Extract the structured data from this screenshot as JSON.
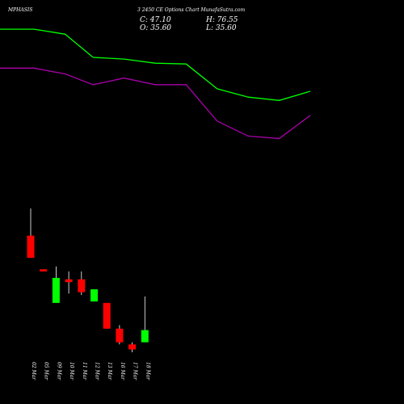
{
  "header": {
    "symbol": "MPHASIS",
    "subtitle": "3 2450  CE Options  Chart MunafaSutra.com",
    "close_label": "C: 47.10",
    "open_label": "O: 35.60",
    "high_label": "H: 76.55",
    "low_label": "L: 35.60"
  },
  "chart_data": {
    "type": "candlestick",
    "x": [
      "02 Mar",
      "05 Mar",
      "09 Mar",
      "10 Mar",
      "11 Mar",
      "12 Mar",
      "13 Mar",
      "16 Mar",
      "17 Mar",
      "18 Mar"
    ],
    "candles": [
      {
        "open": 163,
        "close": 132,
        "high": 201,
        "low": 132
      },
      {
        "open": 116,
        "close": 113,
        "high": 116,
        "low": 113
      },
      {
        "open": 69,
        "close": 104,
        "high": 120,
        "low": 69
      },
      {
        "open": 102,
        "close": 98,
        "high": 113,
        "low": 82
      },
      {
        "open": 102,
        "close": 84,
        "high": 113,
        "low": 80
      },
      {
        "open": 71,
        "close": 88,
        "high": 88,
        "low": 71
      },
      {
        "open": 69,
        "close": 33,
        "high": 69,
        "low": 33
      },
      {
        "open": 33,
        "close": 14,
        "high": 38,
        "low": 11
      },
      {
        "open": 11,
        "close": 4,
        "high": 14,
        "low": 0
      },
      {
        "open": 14,
        "close": 31,
        "high": 78,
        "low": 14
      }
    ],
    "price_range": [
      0,
      201
    ],
    "upper_band": {
      "color": "#00ff00",
      "x": [
        0,
        1.1,
        2.1,
        3.0,
        4.0,
        5.0,
        6.0,
        7.0,
        8.0,
        9.0,
        10.0
      ],
      "values": [
        394,
        394,
        388,
        360,
        358,
        353,
        352,
        322,
        312,
        308,
        319
      ]
    },
    "lower_band": {
      "color": "#aa00aa",
      "x": [
        0,
        1.1,
        2.1,
        3.0,
        4.0,
        5.0,
        6.0,
        7.0,
        8.0,
        9.0,
        10.0
      ],
      "values": [
        347,
        347,
        340,
        327,
        335,
        327,
        327,
        283,
        265,
        262,
        290
      ]
    },
    "colors": {
      "up": "#00ff00",
      "down": "#ff0000",
      "wick": "#ffffff"
    }
  }
}
